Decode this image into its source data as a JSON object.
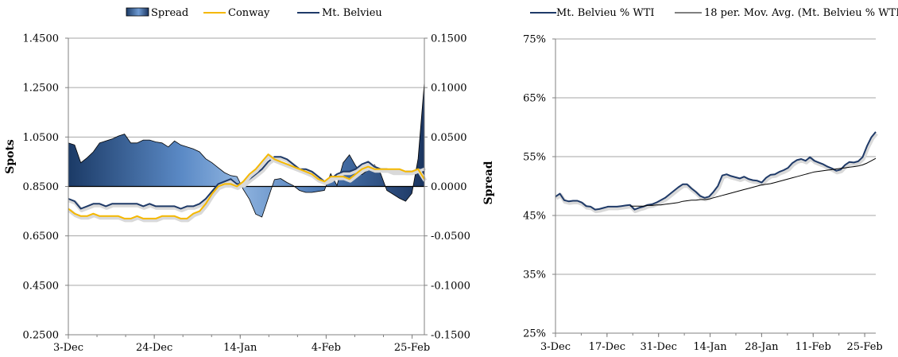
{
  "chart_data": [
    {
      "type": "line",
      "title": "",
      "xlabel": "",
      "ylabel": "Spots",
      "y2label": "Spread",
      "ylim": [
        0.25,
        1.45
      ],
      "y2lim": [
        -0.15,
        0.15
      ],
      "yticks": [
        "1.4500",
        "1.2500",
        "1.0500",
        "0.8500",
        "0.6500",
        "0.4500",
        "0.2500"
      ],
      "y2ticks": [
        "0.1500",
        "0.1000",
        "0.0500",
        "0.0000",
        "-0.0500",
        "-0.1000",
        "-0.1500"
      ],
      "xticks": [
        "3-Dec",
        "24-Dec",
        "14-Jan",
        "4-Feb",
        "25-Feb"
      ],
      "legend_position": "top",
      "grid": "horizontal",
      "legend": [
        {
          "name": "Spread",
          "style": "area",
          "color": "#1f3a68"
        },
        {
          "name": "Conway",
          "style": "line",
          "color": "#f5b800"
        },
        {
          "name": "Mt. Belvieu",
          "style": "line",
          "color": "#1f3a68"
        }
      ],
      "series": [
        {
          "name": "Mt. Belvieu",
          "axis": "left",
          "color": "#1f3a68",
          "values": [
            0.8,
            0.79,
            0.76,
            0.77,
            0.78,
            0.78,
            0.77,
            0.78,
            0.78,
            0.78,
            0.78,
            0.78,
            0.77,
            0.78,
            0.77,
            0.77,
            0.77,
            0.77,
            0.76,
            0.77,
            0.77,
            0.78,
            0.8,
            0.83,
            0.86,
            0.87,
            0.88,
            0.86,
            0.86,
            0.88,
            0.9,
            0.92,
            0.95,
            0.97,
            0.97,
            0.96,
            0.94,
            0.92,
            0.92,
            0.91,
            0.89,
            0.87,
            0.88,
            0.9,
            0.91,
            0.91,
            0.92,
            0.94,
            0.95,
            0.93,
            0.92,
            0.92,
            0.91,
            0.91,
            0.91,
            0.91,
            0.92,
            0.93
          ]
        },
        {
          "name": "Conway",
          "axis": "left",
          "color": "#f5b800",
          "values": [
            0.76,
            0.74,
            0.73,
            0.73,
            0.74,
            0.73,
            0.73,
            0.73,
            0.73,
            0.72,
            0.72,
            0.73,
            0.72,
            0.72,
            0.72,
            0.73,
            0.73,
            0.73,
            0.72,
            0.72,
            0.74,
            0.75,
            0.78,
            0.82,
            0.85,
            0.86,
            0.86,
            0.85,
            0.87,
            0.9,
            0.92,
            0.95,
            0.98,
            0.96,
            0.95,
            0.94,
            0.93,
            0.92,
            0.91,
            0.9,
            0.88,
            0.87,
            0.89,
            0.89,
            0.89,
            0.88,
            0.9,
            0.92,
            0.93,
            0.92,
            0.92,
            0.92,
            0.92,
            0.92,
            0.91,
            0.91,
            0.92,
            0.88
          ]
        },
        {
          "name": "Spread",
          "axis": "right",
          "style": "area",
          "color": "#1f3a68",
          "values": [
            0.044,
            0.042,
            0.024,
            0.029,
            0.035,
            0.044,
            0.046,
            0.048,
            0.051,
            0.053,
            0.044,
            0.044,
            0.047,
            0.047,
            0.045,
            0.044,
            0.04,
            0.046,
            0.042,
            0.04,
            0.038,
            0.035,
            0.028,
            0.024,
            0.019,
            0.014,
            0.011,
            0.01,
            -0.003,
            -0.013,
            -0.028,
            -0.031,
            -0.012,
            0.007,
            0.008,
            0.004,
            0.001,
            -0.004,
            -0.006,
            -0.006,
            -0.005,
            -0.004,
            0.013,
            0.001,
            0.024,
            0.032,
            0.021,
            0.012,
            0.017,
            0.022,
            0.013,
            -0.004,
            -0.008,
            -0.012,
            -0.015,
            -0.007,
            0.028,
            0.105
          ]
        }
      ]
    },
    {
      "type": "line",
      "title": "",
      "xlabel": "",
      "ylabel": "",
      "ylim": [
        25,
        75
      ],
      "yticks": [
        "75%",
        "65%",
        "55%",
        "45%",
        "35%",
        "25%"
      ],
      "xticks": [
        "3-Dec",
        "17-Dec",
        "31-Dec",
        "14-Jan",
        "28-Jan",
        "11-Feb",
        "25-Feb"
      ],
      "legend_position": "top",
      "grid": "horizontal",
      "series": [
        {
          "name": "Mt. Belvieu % WTI",
          "color": "#1f3a68",
          "values": [
            48.2,
            48.7,
            47.6,
            47.4,
            47.5,
            47.5,
            47.2,
            46.6,
            46.5,
            46.0,
            46.1,
            46.3,
            46.5,
            46.5,
            46.5,
            46.6,
            46.7,
            46.8,
            46.0,
            46.3,
            46.5,
            46.8,
            46.9,
            47.2,
            47.6,
            48.0,
            48.6,
            49.2,
            49.8,
            50.3,
            50.3,
            49.6,
            49.0,
            48.3,
            48.0,
            48.2,
            49.0,
            50.0,
            51.8,
            52.0,
            51.7,
            51.5,
            51.3,
            51.6,
            51.2,
            51.0,
            50.9,
            50.6,
            51.4,
            51.9,
            52.0,
            52.4,
            52.7,
            53.1,
            53.9,
            54.4,
            54.6,
            54.3,
            54.9,
            54.3,
            54.0,
            53.7,
            53.3,
            53.0,
            52.6,
            52.8,
            53.6,
            54.1,
            54.0,
            54.2,
            54.9,
            56.8,
            58.3,
            59.2
          ]
        },
        {
          "name": "18 per. Mov. Avg. (Mt. Belvieu % WTI)",
          "color": "#000000",
          "values": [
            null,
            null,
            null,
            null,
            null,
            null,
            null,
            null,
            null,
            null,
            null,
            null,
            null,
            null,
            null,
            null,
            null,
            46.6,
            46.6,
            46.6,
            46.6,
            46.7,
            46.7,
            46.8,
            46.8,
            46.9,
            47.0,
            47.1,
            47.2,
            47.4,
            47.5,
            47.6,
            47.6,
            47.7,
            47.7,
            47.8,
            48.0,
            48.2,
            48.4,
            48.6,
            48.8,
            49.0,
            49.2,
            49.4,
            49.6,
            49.8,
            50.0,
            50.2,
            50.3,
            50.4,
            50.6,
            50.8,
            51.0,
            51.2,
            51.4,
            51.6,
            51.8,
            52.0,
            52.2,
            52.4,
            52.5,
            52.6,
            52.7,
            52.8,
            52.9,
            53.0,
            53.1,
            53.2,
            53.3,
            53.4,
            53.6,
            53.9,
            54.3,
            54.7
          ]
        }
      ]
    }
  ]
}
